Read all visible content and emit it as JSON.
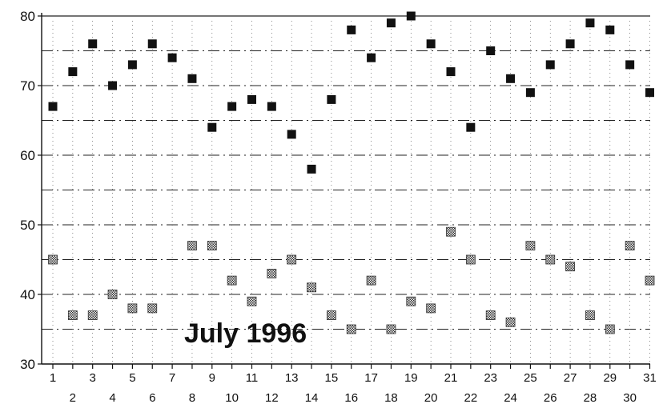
{
  "chart_data": {
    "type": "scatter",
    "title": "July 1996",
    "xlabel": "",
    "ylabel": "",
    "x": [
      1,
      2,
      3,
      4,
      5,
      6,
      7,
      8,
      9,
      10,
      11,
      12,
      13,
      14,
      15,
      16,
      17,
      18,
      19,
      20,
      21,
      22,
      23,
      24,
      25,
      26,
      27,
      28,
      29,
      30,
      31
    ],
    "ylim": [
      30,
      80
    ],
    "yticks": [
      30,
      40,
      50,
      60,
      70,
      80
    ],
    "grid": true,
    "series": [
      {
        "marker": "solid-square",
        "color": "#111111",
        "values": [
          67,
          72,
          76,
          70,
          73,
          76,
          74,
          71,
          64,
          67,
          68,
          67,
          63,
          58,
          68,
          78,
          74,
          79,
          80,
          76,
          72,
          64,
          75,
          71,
          69,
          73,
          76,
          79,
          78,
          73,
          69
        ]
      },
      {
        "marker": "hatched-square",
        "color": "#444444",
        "values": [
          45,
          37,
          37,
          40,
          38,
          38,
          null,
          47,
          47,
          42,
          39,
          43,
          45,
          41,
          37,
          35,
          42,
          35,
          39,
          38,
          49,
          45,
          37,
          36,
          47,
          45,
          44,
          37,
          35,
          47,
          42
        ]
      }
    ]
  }
}
